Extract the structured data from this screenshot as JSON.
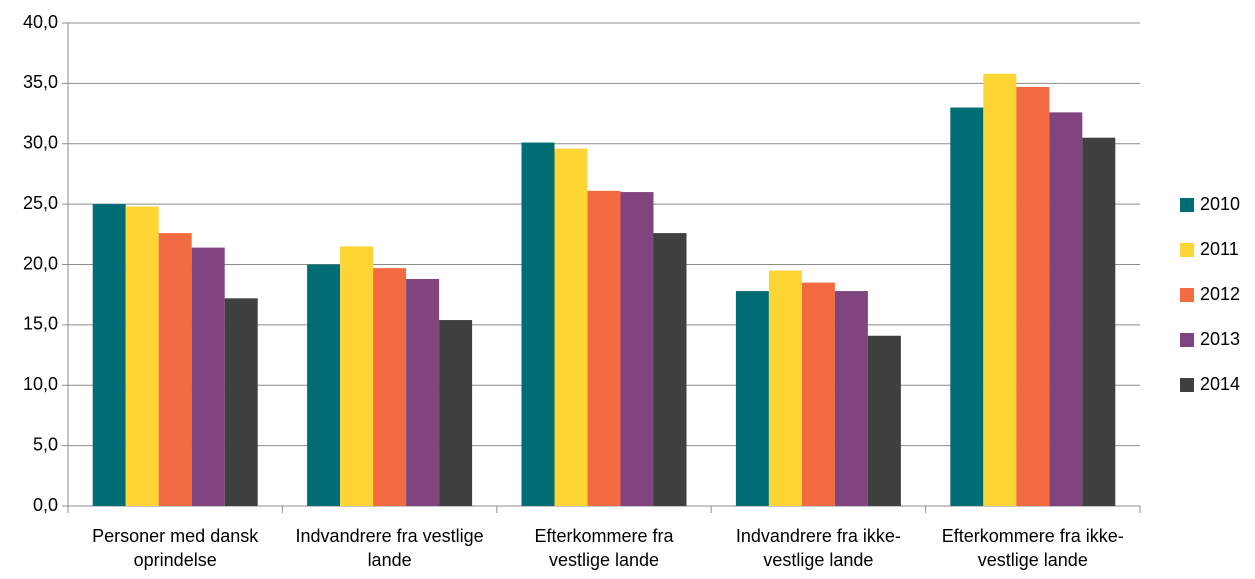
{
  "chart_data": {
    "type": "bar",
    "categories": [
      "Personer med dansk oprindelse",
      "Indvandrere fra vestlige lande",
      "Efterkommere fra vestlige lande",
      "Indvandrere fra ikke-vestlige lande",
      "Efterkommere fra ikke-vestlige lande"
    ],
    "series": [
      {
        "name": "2010",
        "color": "#006d75",
        "values": [
          25.0,
          20.0,
          30.1,
          17.8,
          33.0
        ]
      },
      {
        "name": "2011",
        "color": "#fdd535",
        "values": [
          24.8,
          21.5,
          29.6,
          19.5,
          35.8
        ]
      },
      {
        "name": "2012",
        "color": "#f26b41",
        "values": [
          22.6,
          19.7,
          26.1,
          18.5,
          34.7
        ]
      },
      {
        "name": "2013",
        "color": "#80457f",
        "values": [
          21.4,
          18.8,
          26.0,
          17.8,
          32.6
        ]
      },
      {
        "name": "2014",
        "color": "#404040",
        "values": [
          17.2,
          15.4,
          22.6,
          14.1,
          30.5
        ]
      }
    ],
    "ylim": [
      0,
      40
    ],
    "yticks": [
      {
        "value": 0,
        "label": "0,0"
      },
      {
        "value": 5,
        "label": "5,0"
      },
      {
        "value": 10,
        "label": "10,0"
      },
      {
        "value": 15,
        "label": "15,0"
      },
      {
        "value": 20,
        "label": "20,0"
      },
      {
        "value": 25,
        "label": "25,0"
      },
      {
        "value": 30,
        "label": "30,0"
      },
      {
        "value": 35,
        "label": "35,0"
      },
      {
        "value": 40,
        "label": "40,0"
      }
    ],
    "grid": true,
    "legend": "right"
  }
}
